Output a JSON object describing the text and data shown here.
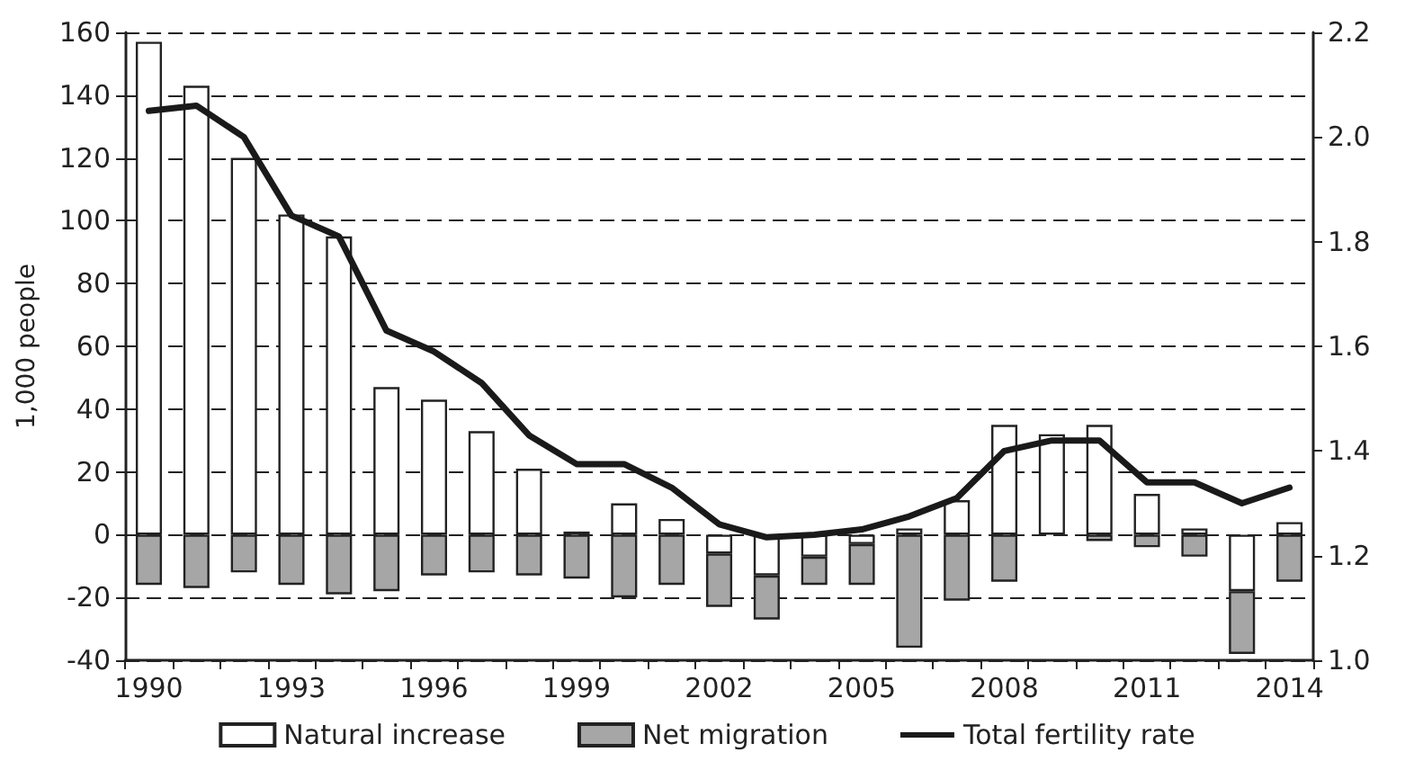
{
  "chart_data": {
    "type": "bar",
    "stacked": true,
    "ylabel": "1,000 people",
    "categories": [
      "1990",
      null,
      null,
      "1993",
      null,
      null,
      "1996",
      null,
      null,
      "1999",
      null,
      null,
      "2002",
      null,
      null,
      "2005",
      null,
      null,
      "2008",
      null,
      null,
      "2011",
      null,
      null,
      "2014"
    ],
    "series": [
      {
        "name": "Natural increase",
        "color": "#ffffff",
        "values": [
          157,
          143,
          120,
          102,
          95,
          47,
          43,
          33,
          21,
          1,
          10,
          5,
          -6,
          -13,
          -7,
          -3,
          2,
          11,
          35,
          32,
          35,
          13,
          2,
          -18,
          4
        ]
      },
      {
        "name": "Net migration",
        "color": "#a6a6a6",
        "values": [
          -16,
          -17,
          -12,
          -16,
          -19,
          -18,
          -13,
          -12,
          -13,
          -14,
          -20,
          -16,
          -17,
          -14,
          -9,
          -13,
          -36,
          -21,
          -15,
          null,
          -2,
          -4,
          -7,
          -20,
          -15
        ]
      },
      {
        "name": "Total fertility rate",
        "type": "line",
        "axis": "y2",
        "color": "#1a1a1a",
        "values": [
          2.05,
          2.06,
          2.0,
          1.85,
          1.81,
          1.63,
          1.59,
          1.53,
          1.43,
          1.375,
          1.375,
          1.33,
          1.26,
          1.235,
          1.24,
          1.25,
          1.275,
          1.31,
          1.4,
          1.42,
          1.42,
          1.34,
          1.34,
          1.3,
          1.33
        ]
      }
    ],
    "ylim": [
      -40,
      160
    ],
    "yticks": [
      -40,
      -20,
      0,
      20,
      40,
      60,
      80,
      100,
      120,
      140,
      160
    ],
    "y2lim": [
      1.0,
      2.2
    ],
    "y2ticks": [
      {
        "value": 1.0,
        "label": "1.0"
      },
      {
        "value": 1.2,
        "label": "1.2"
      },
      {
        "value": 1.4,
        "label": "1.4"
      },
      {
        "value": 1.6,
        "label": "1.6"
      },
      {
        "value": 1.8,
        "label": "1.8"
      },
      {
        "value": 2.0,
        "label": "2.0"
      },
      {
        "value": 2.2,
        "label": "2.2"
      }
    ],
    "grid": "y",
    "legend": "bottom",
    "marker": "none",
    "line_style": "solid"
  }
}
